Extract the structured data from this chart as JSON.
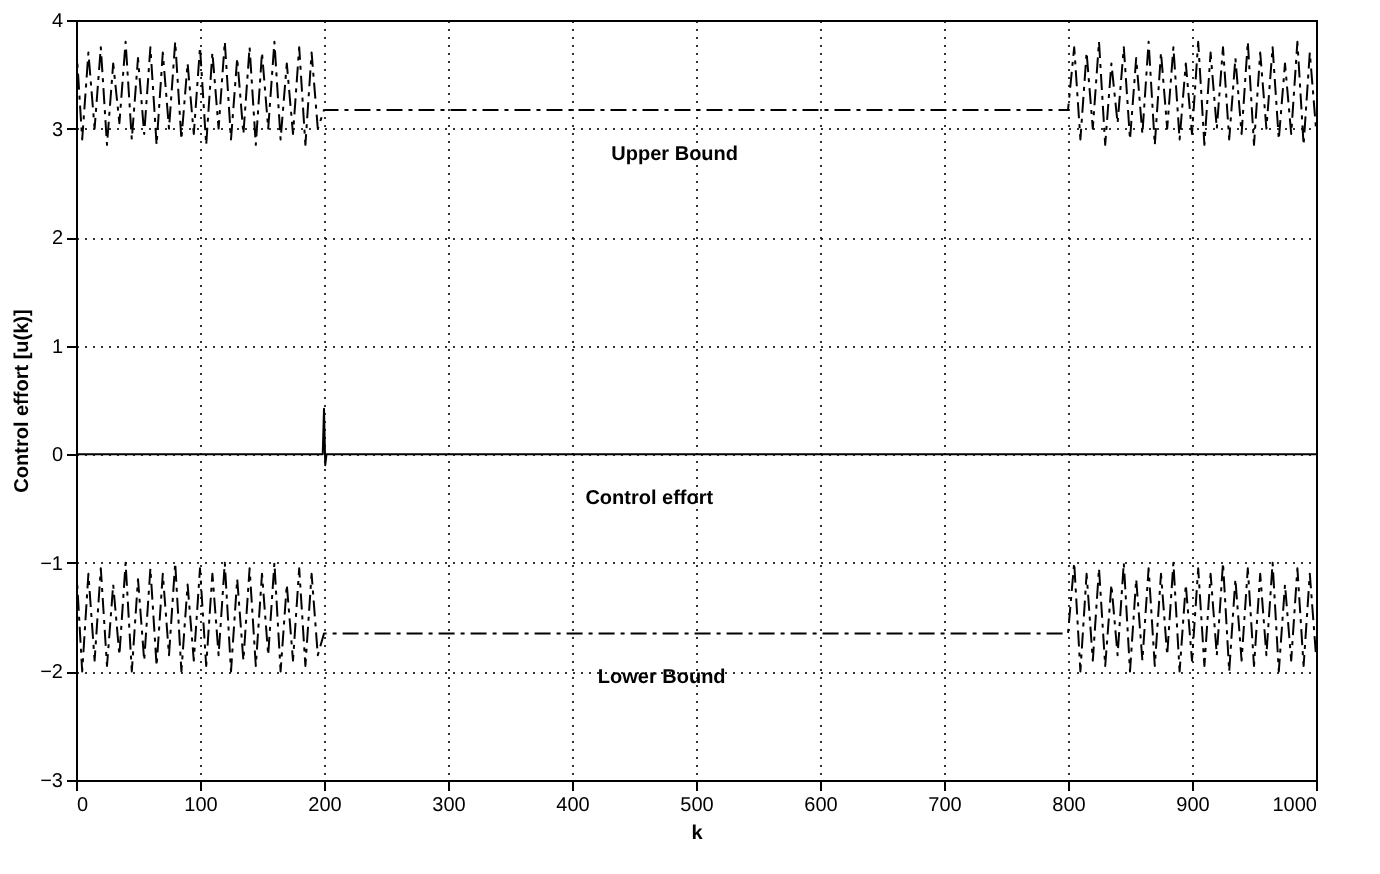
{
  "chart_data": {
    "type": "line",
    "xlabel": "k",
    "ylabel": "Control effort [u(k)]",
    "xlim": [
      0,
      1000
    ],
    "xticks": [
      0,
      100,
      200,
      300,
      400,
      500,
      600,
      700,
      800,
      900,
      1000
    ],
    "ylim": [
      -3,
      4
    ],
    "yticks": [
      -3,
      -2,
      -1,
      0,
      1,
      2,
      3,
      4
    ],
    "grid": true,
    "series": [
      {
        "color": "#000000",
        "line_style": "dashed",
        "x": [
          0,
          5,
          10,
          15,
          20,
          25,
          30,
          35,
          40,
          45,
          50,
          55,
          60,
          65,
          70,
          75,
          80,
          85,
          90,
          95,
          100,
          105,
          110,
          115,
          120,
          125,
          130,
          135,
          140,
          145,
          150,
          155,
          160,
          165,
          170,
          175,
          180,
          185,
          190,
          195,
          200,
          800,
          805,
          810,
          815,
          820,
          825,
          830,
          835,
          840,
          845,
          850,
          855,
          860,
          865,
          870,
          875,
          880,
          885,
          890,
          895,
          900,
          905,
          910,
          915,
          920,
          925,
          930,
          935,
          940,
          945,
          950,
          955,
          960,
          965,
          970,
          975,
          980,
          985,
          990,
          995,
          1000
        ],
        "values": [
          3.8,
          2.9,
          3.7,
          3.0,
          3.75,
          2.85,
          3.6,
          3.05,
          3.8,
          2.9,
          3.65,
          2.95,
          3.75,
          2.85,
          3.7,
          3.0,
          3.8,
          2.9,
          3.6,
          2.95,
          3.75,
          2.85,
          3.7,
          3.0,
          3.8,
          2.9,
          3.65,
          2.95,
          3.75,
          2.85,
          3.7,
          3.0,
          3.8,
          2.9,
          3.6,
          2.95,
          3.75,
          2.85,
          3.7,
          3.0,
          3.17,
          3.17,
          3.75,
          2.9,
          3.7,
          3.0,
          3.8,
          2.85,
          3.6,
          3.05,
          3.75,
          2.9,
          3.65,
          2.95,
          3.8,
          2.85,
          3.7,
          3.0,
          3.75,
          2.9,
          3.6,
          2.95,
          3.8,
          2.85,
          3.7,
          3.0,
          3.75,
          2.9,
          3.65,
          2.95,
          3.8,
          2.85,
          3.7,
          3.0,
          3.75,
          2.9,
          3.6,
          2.95,
          3.8,
          2.85,
          3.7,
          3.0
        ]
      },
      {
        "color": "#000000",
        "line_style": "dashed",
        "x": [
          0,
          5,
          10,
          15,
          20,
          25,
          30,
          35,
          40,
          45,
          50,
          55,
          60,
          65,
          70,
          75,
          80,
          85,
          90,
          95,
          100,
          105,
          110,
          115,
          120,
          125,
          130,
          135,
          140,
          145,
          150,
          155,
          160,
          165,
          170,
          175,
          180,
          185,
          190,
          195,
          200,
          800,
          805,
          810,
          815,
          820,
          825,
          830,
          835,
          840,
          845,
          850,
          855,
          860,
          865,
          870,
          875,
          880,
          885,
          890,
          895,
          900,
          905,
          910,
          915,
          920,
          925,
          930,
          935,
          940,
          945,
          950,
          955,
          960,
          965,
          970,
          975,
          980,
          985,
          990,
          995,
          1000
        ],
        "values": [
          -1.0,
          -2.0,
          -1.1,
          -1.9,
          -1.05,
          -1.95,
          -1.2,
          -1.85,
          -1.0,
          -2.0,
          -1.15,
          -1.9,
          -1.05,
          -1.95,
          -1.1,
          -1.85,
          -1.0,
          -2.0,
          -1.2,
          -1.9,
          -1.05,
          -1.95,
          -1.1,
          -1.85,
          -1.0,
          -2.0,
          -1.15,
          -1.9,
          -1.05,
          -1.95,
          -1.1,
          -1.85,
          -1.0,
          -2.0,
          -1.2,
          -1.9,
          -1.05,
          -1.95,
          -1.1,
          -1.85,
          -1.65,
          -1.65,
          -1.0,
          -2.0,
          -1.1,
          -1.9,
          -1.05,
          -1.95,
          -1.2,
          -1.85,
          -1.0,
          -2.0,
          -1.15,
          -1.9,
          -1.05,
          -1.95,
          -1.1,
          -1.85,
          -1.0,
          -2.0,
          -1.2,
          -1.9,
          -1.05,
          -1.95,
          -1.1,
          -1.85,
          -1.0,
          -2.0,
          -1.15,
          -1.9,
          -1.05,
          -1.95,
          -1.1,
          -1.85,
          -1.0,
          -2.0,
          -1.2,
          -1.9,
          -1.05,
          -1.95,
          -1.1,
          -1.85
        ]
      },
      {
        "color": "#000000",
        "line_style": "solid",
        "x": [
          0,
          199,
          200,
          201,
          202,
          1000
        ],
        "values": [
          0,
          0,
          0.42,
          -0.1,
          0,
          0
        ]
      }
    ],
    "annotations": [
      {
        "text": "Upper Bound",
        "x": 550,
        "y": 3.17
      },
      {
        "text": "Control effort",
        "x": 530,
        "y": 0
      },
      {
        "text": "Lower Bound",
        "x": 540,
        "y": -1.65
      }
    ]
  }
}
